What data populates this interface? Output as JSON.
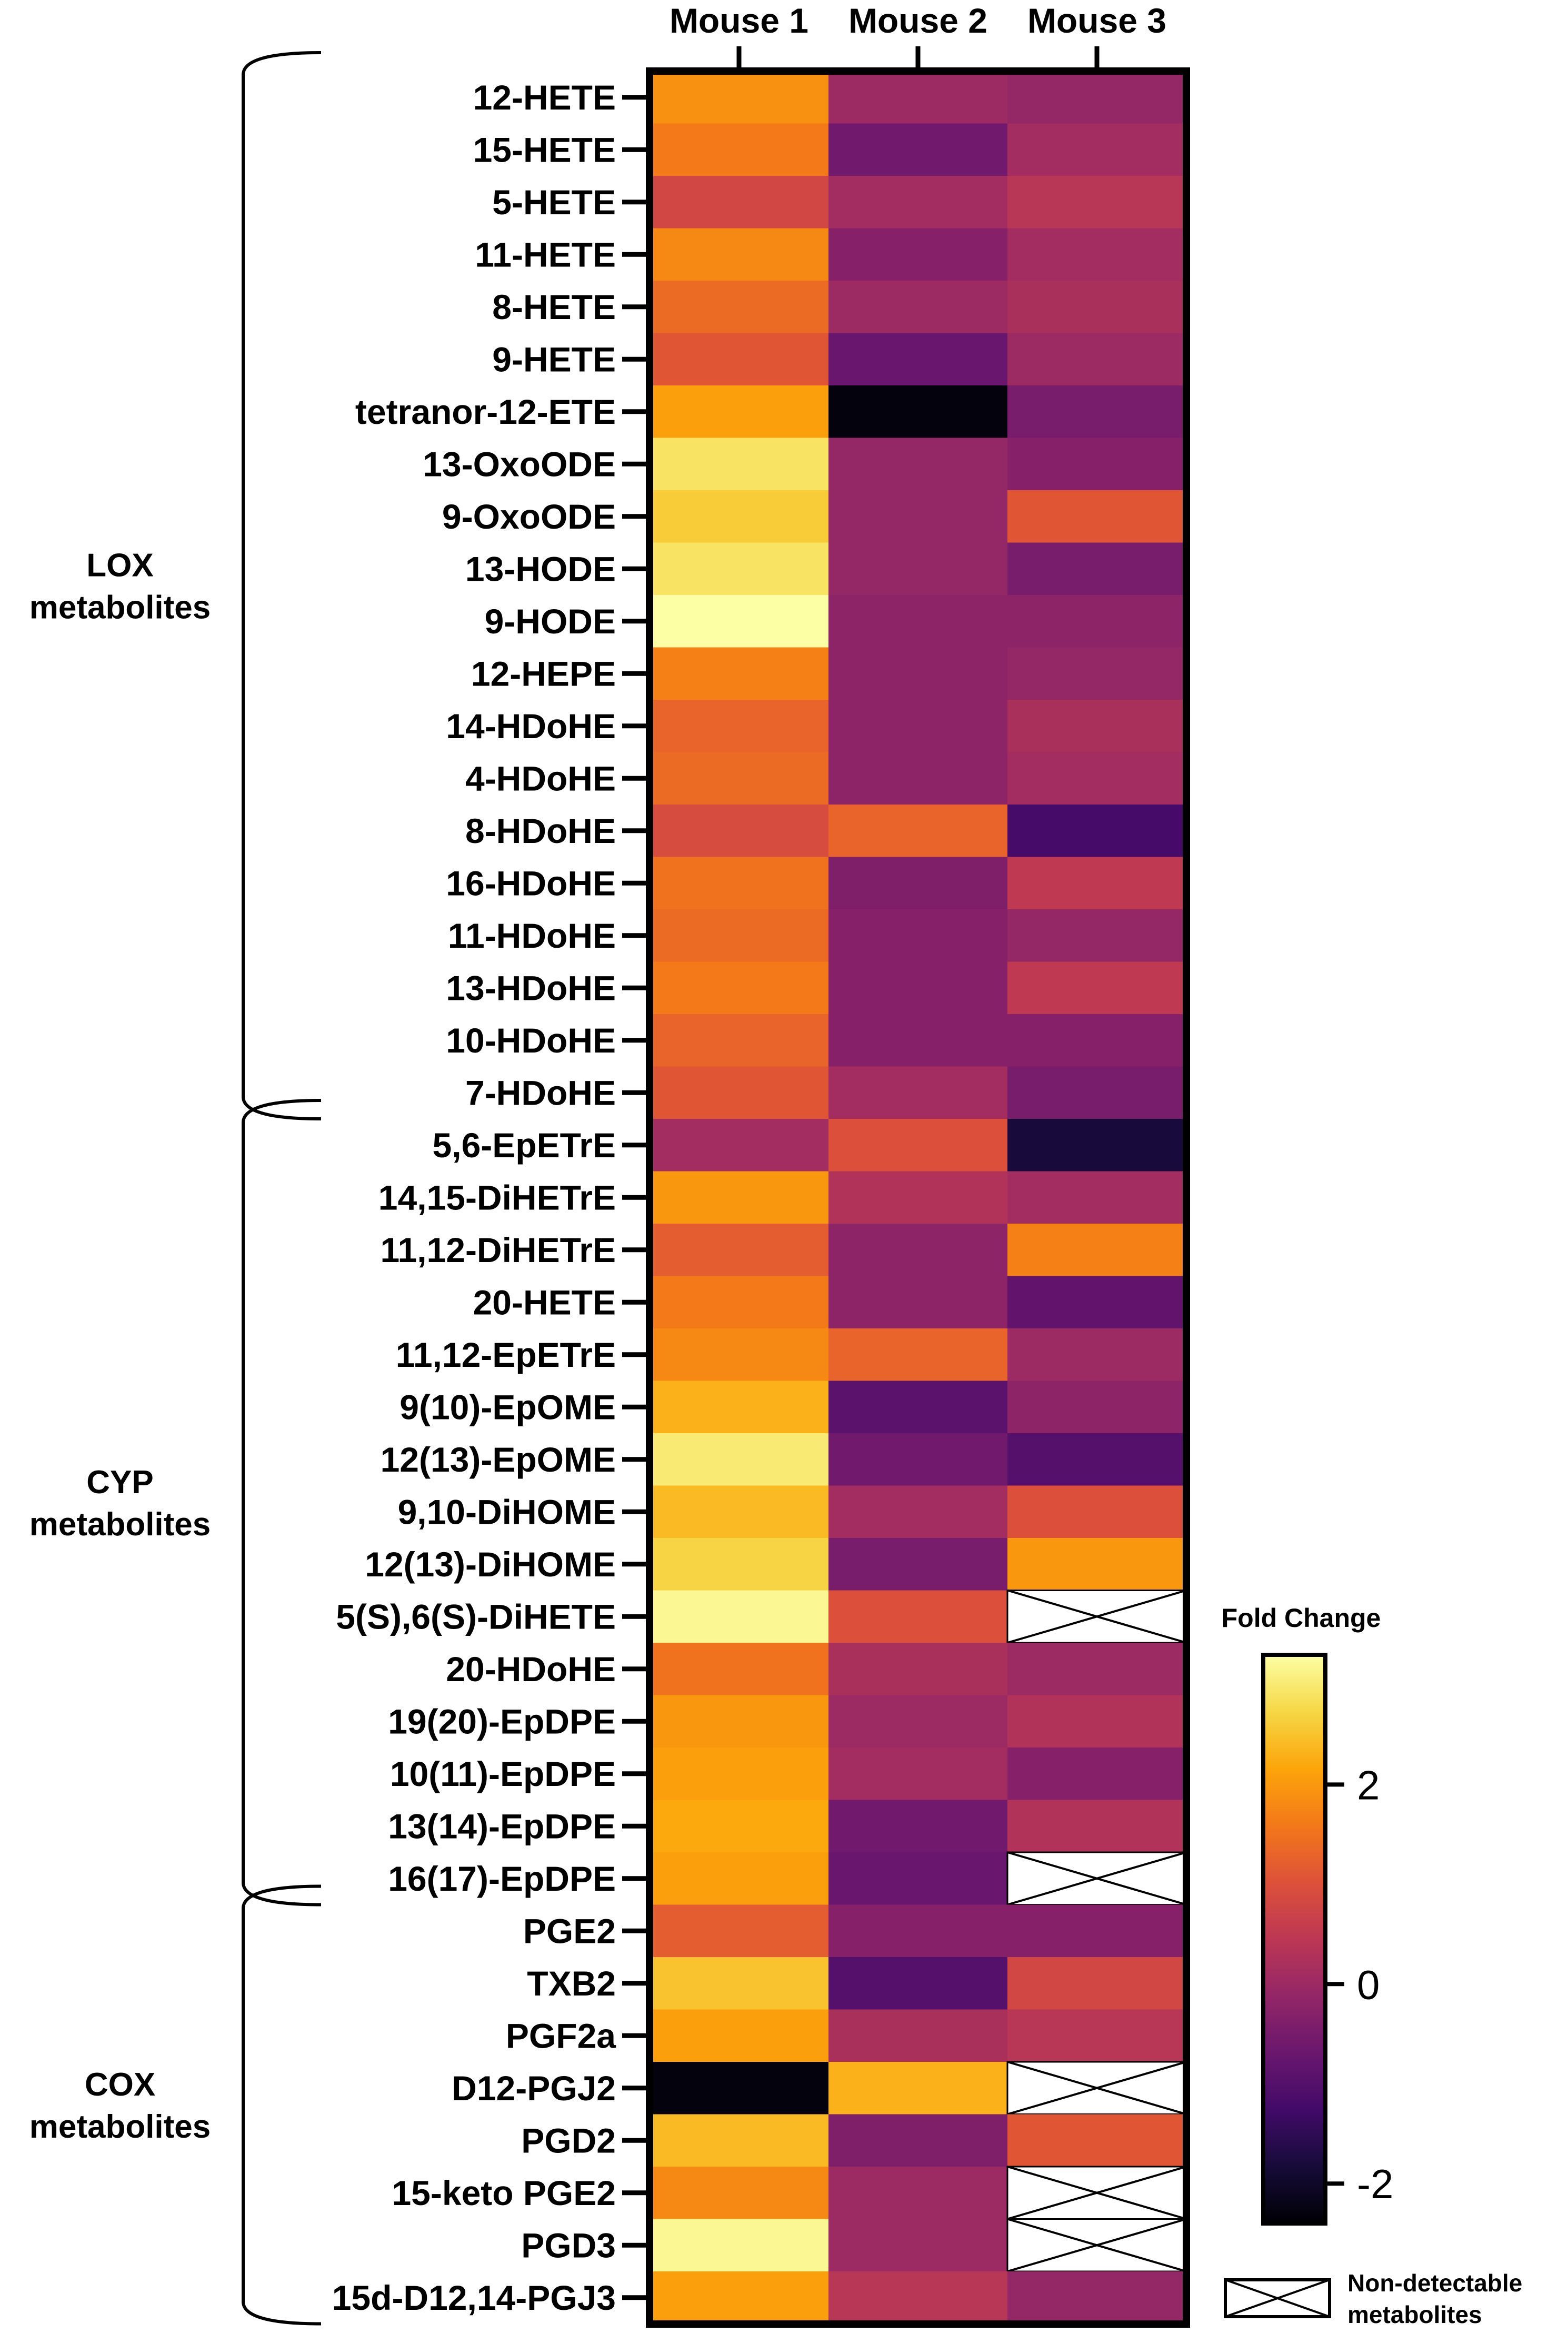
{
  "chart_data": {
    "type": "heatmap",
    "columns": [
      "Mouse 1",
      "Mouse 2",
      "Mouse 3"
    ],
    "rows": [
      "12-HETE",
      "15-HETE",
      "5-HETE",
      "11-HETE",
      "8-HETE",
      "9-HETE",
      "tetranor-12-ETE",
      "13-OxoODE",
      "9-OxoODE",
      "13-HODE",
      "9-HODE",
      "12-HEPE",
      "14-HDoHE",
      "4-HDoHE",
      "8-HDoHE",
      "16-HDoHE",
      "11-HDoHE",
      "13-HDoHE",
      "10-HDoHE",
      "7-HDoHE",
      "5,6-EpETrE",
      "14,15-DiHETrE",
      "11,12-DiHETrE",
      "20-HETE",
      "11,12-EpETrE",
      "9(10)-EpOME",
      "12(13)-EpOME",
      "9,10-DiHOME",
      "12(13)-DiHOME",
      "5(S),6(S)-DiHETE",
      "20-HDoHE",
      "19(20)-EpDPE",
      "10(11)-EpDPE",
      "13(14)-EpDPE",
      "16(17)-EpDPE",
      "PGE2",
      "TXB2",
      "PGF2a",
      "D12-PGJ2",
      "PGD2",
      "15-keto PGE2",
      "PGD3",
      "15d-D12,14-PGJ3"
    ],
    "values": [
      [
        1.9,
        0.0,
        -0.1
      ],
      [
        1.6,
        -0.6,
        0.1
      ],
      [
        0.8,
        0.1,
        0.4
      ],
      [
        1.8,
        -0.3,
        0.1
      ],
      [
        1.4,
        0.0,
        0.2
      ],
      [
        1.1,
        -0.7,
        0.0
      ],
      [
        2.1,
        -2.3,
        -0.5
      ],
      [
        2.9,
        -0.1,
        -0.3
      ],
      [
        2.6,
        -0.1,
        1.1
      ],
      [
        2.9,
        -0.1,
        -0.5
      ],
      [
        3.3,
        -0.2,
        -0.2
      ],
      [
        1.7,
        -0.2,
        -0.1
      ],
      [
        1.3,
        -0.2,
        0.2
      ],
      [
        1.4,
        -0.2,
        0.1
      ],
      [
        0.9,
        1.3,
        -1.2
      ],
      [
        1.5,
        -0.4,
        0.5
      ],
      [
        1.4,
        -0.3,
        -0.1
      ],
      [
        1.6,
        -0.3,
        0.5
      ],
      [
        1.3,
        -0.3,
        -0.3
      ],
      [
        1.1,
        0.1,
        -0.5
      ],
      [
        0.1,
        1.0,
        -1.8
      ],
      [
        2.0,
        0.3,
        0.1
      ],
      [
        1.2,
        -0.2,
        1.7
      ],
      [
        1.6,
        -0.2,
        -0.8
      ],
      [
        1.8,
        1.3,
        0.0
      ],
      [
        2.3,
        -0.9,
        -0.2
      ],
      [
        3.0,
        -0.6,
        -1.0
      ],
      [
        2.4,
        0.1,
        1.0
      ],
      [
        2.7,
        -0.5,
        2.0
      ],
      [
        3.2,
        1.0,
        null
      ],
      [
        1.5,
        0.2,
        0.0
      ],
      [
        2.0,
        0.0,
        0.3
      ],
      [
        2.1,
        0.1,
        -0.3
      ],
      [
        2.2,
        -0.6,
        0.3
      ],
      [
        2.1,
        -0.7,
        null
      ],
      [
        1.2,
        -0.3,
        -0.3
      ],
      [
        2.5,
        -1.0,
        0.8
      ],
      [
        2.1,
        0.2,
        0.4
      ],
      [
        -2.3,
        2.3,
        null
      ],
      [
        2.4,
        -0.4,
        1.1
      ],
      [
        1.8,
        0.0,
        null
      ],
      [
        3.2,
        0.0,
        null
      ],
      [
        2.1,
        0.4,
        -0.1
      ]
    ],
    "groups": [
      {
        "label_line1": "LOX",
        "label_line2": "metabolites",
        "start": 0,
        "end": 19
      },
      {
        "label_line1": "CYP",
        "label_line2": "metabolites",
        "start": 20,
        "end": 34
      },
      {
        "label_line1": "COX",
        "label_line2": "metabolites",
        "start": 35,
        "end": 42
      }
    ],
    "colorbar": {
      "title": "Fold Change",
      "range": [
        -2.4,
        3.3
      ],
      "ticks": [
        2,
        0,
        -2
      ],
      "tick_labels": [
        "2",
        "0",
        "-2"
      ],
      "colormap": "inferno"
    },
    "legend": {
      "non_detectable_line1": "Non-detectable",
      "non_detectable_line2": "metabolites"
    }
  }
}
